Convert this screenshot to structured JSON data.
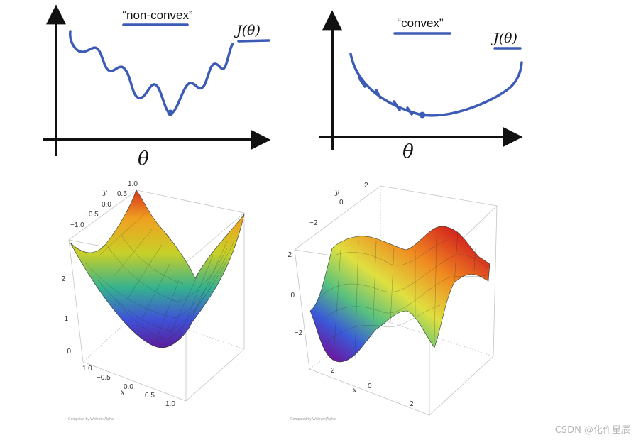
{
  "sketches": {
    "nonconvex": {
      "title": "“non-convex”",
      "ylabel": "J(θ)",
      "xlabel": "θ"
    },
    "convex": {
      "title": "“convex”",
      "ylabel": "J(θ)",
      "xlabel": "θ"
    }
  },
  "plot_left": {
    "y_ticks": [
      "1.0",
      "0.5",
      "0.0",
      "−0.5",
      "−1.0"
    ],
    "y_label": "y",
    "z_ticks": [
      "2",
      "1",
      "0"
    ],
    "x_ticks": [
      "−1.0",
      "−0.5",
      "0.0",
      "0.5",
      "1.0"
    ],
    "x_label": "x",
    "credit": "Computed by Wolfram|Alpha"
  },
  "plot_right": {
    "y_ticks": [
      "2",
      "0",
      "−2"
    ],
    "y_label": "y",
    "z_ticks": [
      "2",
      "0",
      "−2"
    ],
    "x_ticks": [
      "−2",
      "0",
      "2"
    ],
    "x_label": "x",
    "credit": "Computed by Wolfram|Alpha"
  },
  "watermark": "CSDN @化作星辰",
  "colors": {
    "ink": "#3b5bb5",
    "axis": "#111111"
  }
}
